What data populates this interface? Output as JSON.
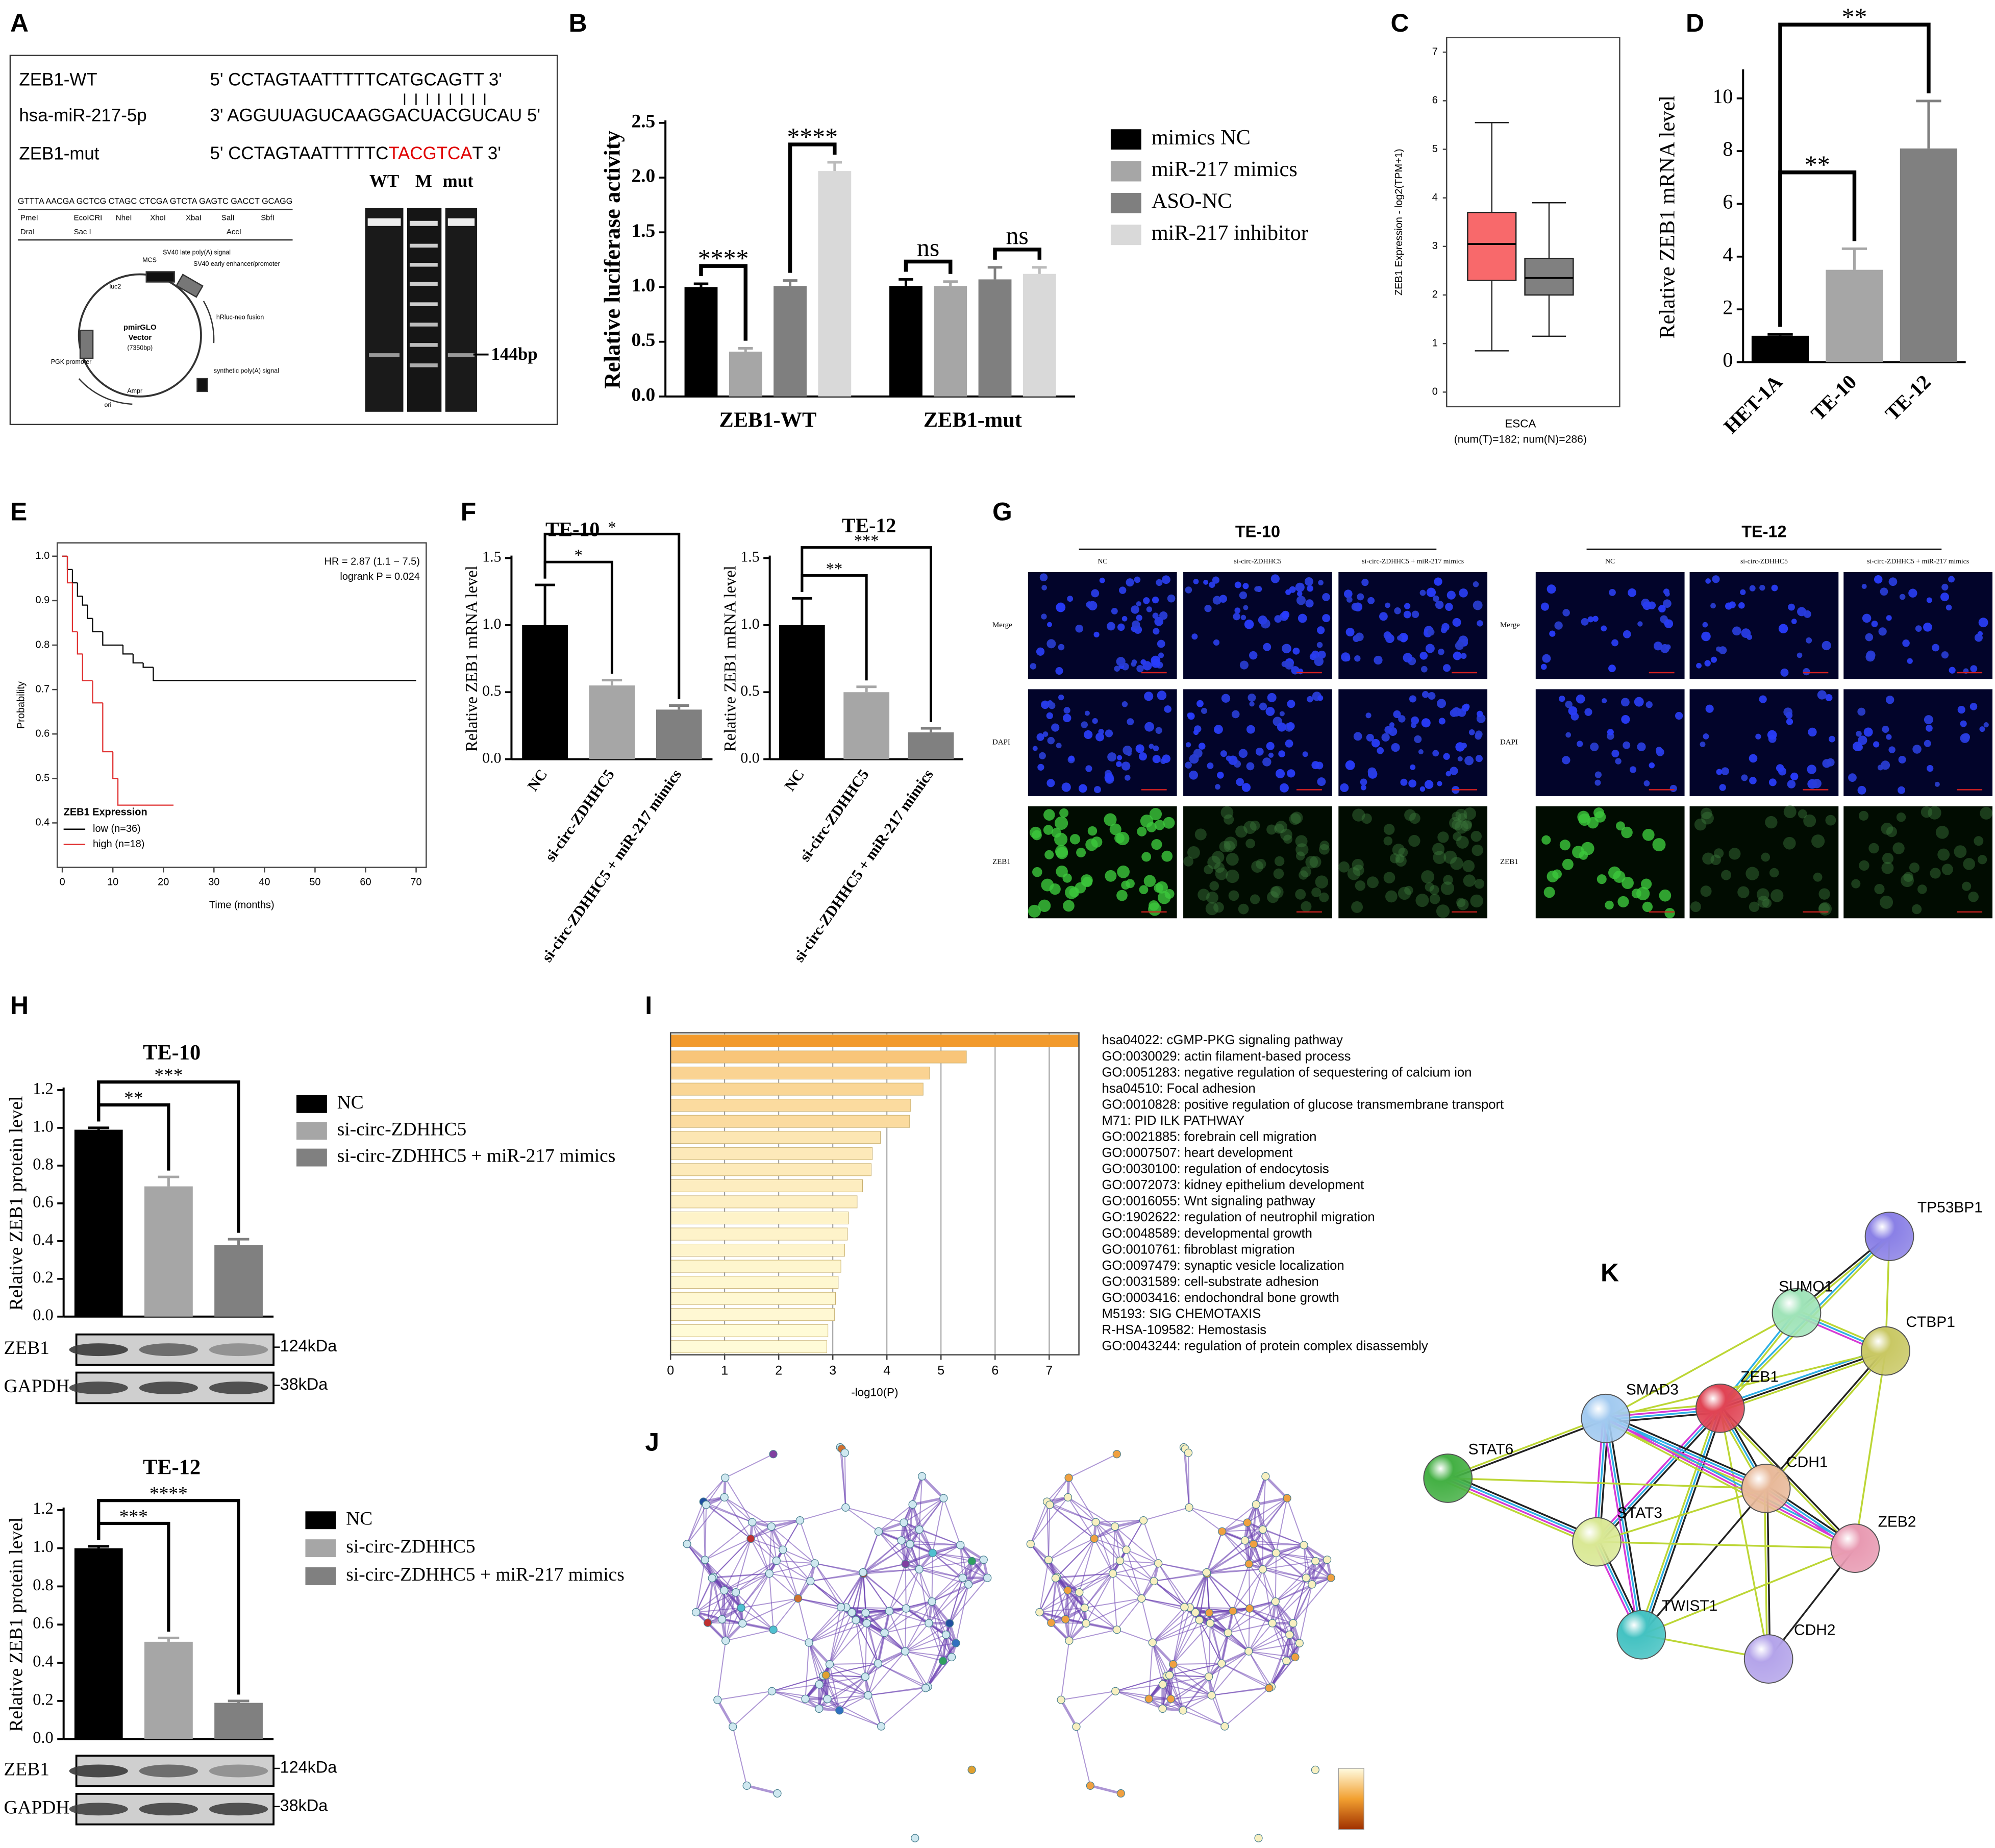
{
  "panel_labels": [
    "A",
    "B",
    "C",
    "D",
    "E",
    "F",
    "G",
    "H",
    "I",
    "J",
    "K"
  ],
  "chart_data": [
    {
      "type": "bar",
      "categories": [
        "ZEB1-WT",
        "ZEB1-mut"
      ],
      "series": [
        {
          "name": "mimics NC",
          "color": "#000000",
          "values": [
            1.0,
            1.01
          ],
          "errors": [
            0.03,
            0.06
          ]
        },
        {
          "name": "miR-217 mimics",
          "color": "#a6a6a6",
          "values": [
            0.41,
            1.01
          ],
          "errors": [
            0.03,
            0.04
          ]
        },
        {
          "name": "ASO-NC",
          "color": "#7f7f7f",
          "values": [
            1.01,
            1.07
          ],
          "errors": [
            0.05,
            0.11
          ]
        },
        {
          "name": "miR-217 inhibitor",
          "color": "#d9d9d9",
          "values": [
            2.06,
            1.12
          ],
          "errors": [
            0.08,
            0.06
          ]
        }
      ],
      "y_label": "Relative luciferase activity",
      "ylim": [
        0,
        2.5
      ],
      "yticks": [
        {
          "value": 0,
          "label": "0.0"
        },
        0.5,
        {
          "value": 1,
          "label": "1.0"
        },
        1.5,
        {
          "value": 2,
          "label": "2.0"
        },
        2.5
      ],
      "annotations": [
        {
          "label": "****",
          "category": 0,
          "from": 0,
          "to": 1
        },
        {
          "label": "****",
          "category": 0,
          "from": 2,
          "to": 3
        },
        {
          "label": "ns",
          "category": 1,
          "from": 0,
          "to": 1
        },
        {
          "label": "ns",
          "category": 1,
          "from": 2,
          "to": 3
        }
      ],
      "legend": true
    },
    {
      "type": "box",
      "y_label": "ZEB1 Expression - log2(TPM+1)",
      "x_label": "ESCA",
      "x_sublabel": "(num(T)=182; num(N)=286)",
      "ylim": [
        -0.3,
        7.3
      ],
      "yticks": [
        0,
        1,
        2,
        3,
        4,
        5,
        6,
        7
      ],
      "boxes": [
        {
          "color": "#f8696b",
          "whisker_low": 0.85,
          "q1": 2.3,
          "median": 3.05,
          "q3": 3.7,
          "whisker_high": 5.55
        },
        {
          "color": "#808080",
          "whisker_low": 1.15,
          "q1": 2.0,
          "median": 2.35,
          "q3": 2.75,
          "whisker_high": 3.9
        }
      ]
    },
    {
      "type": "bar",
      "categories": [
        "HET-1A",
        "TE-10",
        "TE-12"
      ],
      "values": [
        1.0,
        3.5,
        8.1
      ],
      "errors": [
        0.05,
        0.8,
        1.8
      ],
      "colors": [
        "#000000",
        "#a6a6a6",
        "#808080"
      ],
      "y_label": "Relative ZEB1 mRNA level",
      "ylim": [
        0,
        11
      ],
      "yticks": [
        0,
        2,
        4,
        6,
        8,
        10
      ],
      "annotations": [
        {
          "label": "**",
          "from": 0,
          "to": 1
        },
        {
          "label": "**",
          "from": 0,
          "to": 2
        }
      ]
    },
    {
      "type": "line",
      "step": true,
      "x_label": "Time (months)",
      "y_label": "Probability",
      "xlim": [
        -1,
        72
      ],
      "xticks": [
        0,
        10,
        20,
        30,
        40,
        50,
        60,
        70
      ],
      "ylim": [
        0.3,
        1.03
      ],
      "yticks": [
        0.4,
        0.5,
        0.6,
        0.7,
        0.8,
        0.9,
        {
          "value": 1,
          "label": "1.0"
        }
      ],
      "annotations": [
        "HR = 2.87 (1.1 − 7.5)",
        "logrank P = 0.024"
      ],
      "legend_title": "ZEB1 Expression",
      "series": [
        {
          "name": "low  (n=36)",
          "color": "#000000",
          "x": [
            0,
            1,
            2,
            3,
            4,
            5,
            6,
            8,
            10,
            12,
            14,
            16,
            18,
            70
          ],
          "values": [
            1,
            0.97,
            0.94,
            0.91,
            0.89,
            0.86,
            0.83,
            0.8,
            0.8,
            0.78,
            0.76,
            0.75,
            0.72,
            0.72
          ]
        },
        {
          "name": "high (n=18)",
          "color": "#e03030",
          "x": [
            0,
            1,
            2,
            3,
            4,
            6,
            8,
            10,
            11,
            22
          ],
          "values": [
            1,
            0.94,
            0.83,
            0.78,
            0.72,
            0.67,
            0.56,
            0.5,
            0.44,
            0.44
          ]
        }
      ]
    },
    {
      "type": "bar",
      "title": "TE-10",
      "categories": [
        "NC",
        "si-circ-ZDHHC5",
        "si-circ-ZDHHC5 + miR-217 mimics"
      ],
      "values": [
        1.0,
        0.55,
        0.37
      ],
      "errors": [
        0.3,
        0.04,
        0.03
      ],
      "colors": [
        "#000000",
        "#a6a6a6",
        "#808080"
      ],
      "y_label": "Relative ZEB1 mRNA level",
      "ylim": [
        0,
        1.5
      ],
      "yticks": [
        {
          "value": 0,
          "label": "0.0"
        },
        0.5,
        {
          "value": 1,
          "label": "1.0"
        },
        1.5
      ],
      "annotations": [
        {
          "label": "*",
          "from": 0,
          "to": 1
        },
        {
          "label": "*",
          "from": 0,
          "to": 2
        }
      ]
    },
    {
      "type": "bar",
      "title": "TE-12",
      "categories": [
        "NC",
        "si-circ-ZDHHC5",
        "si-circ-ZDHHC5 + miR-217 mimics"
      ],
      "values": [
        1.0,
        0.5,
        0.2
      ],
      "errors": [
        0.2,
        0.04,
        0.03
      ],
      "colors": [
        "#000000",
        "#a6a6a6",
        "#808080"
      ],
      "y_label": "Relative ZEB1 mRNA level",
      "ylim": [
        0,
        1.5
      ],
      "yticks": [
        {
          "value": 0,
          "label": "0.0"
        },
        0.5,
        {
          "value": 1,
          "label": "1.0"
        },
        1.5
      ],
      "annotations": [
        {
          "label": "**",
          "from": 0,
          "to": 1
        },
        {
          "label": "***",
          "from": 0,
          "to": 2
        }
      ]
    },
    {
      "type": "bar",
      "title": "TE-10",
      "categories": [
        "NC",
        "si-circ-ZDHHC5",
        "si-circ-ZDHHC5 + miR-217 mimics"
      ],
      "values": [
        0.99,
        0.69,
        0.38
      ],
      "errors": [
        0.01,
        0.05,
        0.03
      ],
      "colors": [
        "#000000",
        "#a6a6a6",
        "#808080"
      ],
      "y_label": "Relative ZEB1 protein level",
      "ylim": [
        0,
        1.2
      ],
      "yticks": [
        {
          "value": 0,
          "label": "0.0"
        },
        0.2,
        0.4,
        0.6,
        0.8,
        {
          "value": 1,
          "label": "1.0"
        },
        1.2
      ],
      "annotations": [
        {
          "label": "**",
          "from": 0,
          "to": 1
        },
        {
          "label": "***",
          "from": 0,
          "to": 2
        }
      ],
      "legend": true,
      "xtick_labels": false,
      "blots": [
        {
          "label": "ZEB1",
          "size": "124kDa"
        },
        {
          "label": "GAPDH",
          "size": "38kDa"
        }
      ]
    },
    {
      "type": "bar",
      "title": "TE-12",
      "categories": [
        "NC",
        "si-circ-ZDHHC5",
        "si-circ-ZDHHC5 + miR-217 mimics"
      ],
      "values": [
        1.0,
        0.51,
        0.19
      ],
      "errors": [
        0.01,
        0.02,
        0.01
      ],
      "colors": [
        "#000000",
        "#a6a6a6",
        "#808080"
      ],
      "y_label": "Relative ZEB1 protein level",
      "ylim": [
        0,
        1.2
      ],
      "yticks": [
        {
          "value": 0,
          "label": "0.0"
        },
        0.2,
        0.4,
        0.6,
        0.8,
        {
          "value": 1,
          "label": "1.0"
        },
        1.2
      ],
      "annotations": [
        {
          "label": "***",
          "from": 0,
          "to": 1
        },
        {
          "label": "****",
          "from": 0,
          "to": 2
        }
      ],
      "legend": true,
      "xtick_labels": false,
      "blots": [
        {
          "label": "ZEB1",
          "size": "124kDa"
        },
        {
          "label": "GAPDH",
          "size": "38kDa"
        }
      ]
    },
    {
      "type": "hbar",
      "x_label": "-log10(P)",
      "xlim": [
        0,
        7.55
      ],
      "xticks": [
        0,
        1,
        2,
        3,
        4,
        5,
        6,
        7
      ],
      "grid": true,
      "color_scale": [
        "#fffbd8",
        "#f29a2c"
      ],
      "categories": [
        "hsa04022: cGMP-PKG signaling pathway",
        "GO:0030029: actin filament-based process",
        "GO:0051283: negative regulation of sequestering of calcium ion",
        "hsa04510: Focal adhesion",
        "GO:0010828: positive regulation of glucose transmembrane transport",
        "M71: PID ILK PATHWAY",
        "GO:0021885: forebrain cell migration",
        "GO:0007507: heart development",
        "GO:0030100: regulation of endocytosis",
        "GO:0072073: kidney epithelium development",
        "GO:0016055: Wnt signaling pathway",
        "GO:1902622: regulation of neutrophil migration",
        "GO:0048589: developmental growth",
        "GO:0010761: fibroblast migration",
        "GO:0097479: synaptic vesicle localization",
        "GO:0031589: cell-substrate adhesion",
        "GO:0003416: endochondral bone growth",
        "M5193: SIG CHEMOTAXIS",
        "R-HSA-109582: Hemostasis",
        "GO:0043244: regulation of protein complex disassembly"
      ],
      "values": [
        7.54,
        5.47,
        4.79,
        4.67,
        4.44,
        4.42,
        3.88,
        3.73,
        3.71,
        3.55,
        3.45,
        3.29,
        3.27,
        3.22,
        3.15,
        3.1,
        3.05,
        3.03,
        2.91,
        2.89
      ]
    }
  ],
  "panels": {
    "A": {
      "rows": [
        {
          "label": "ZEB1-WT",
          "sequence": "5' CCTAGTAATTTTTCATGCAGTT 3'"
        },
        {
          "label": "hsa-miR-217-5p",
          "sequence": "3' AGGUUAGUCAAGGACUACGUCAU 5'"
        },
        {
          "label": "ZEB1-mut",
          "sequence": [
            "5' CCTAGTAATTTTTC",
            "TACGTCA",
            "T 3'"
          ]
        }
      ],
      "mcs": "GTTTA AACGA GCTCG CTAGC CTCGA GTCTA GAGTC GACCT GCAGG",
      "sites": [
        "PmeI",
        "DraI",
        "EcoICRI",
        "Sac I",
        "NheI",
        "XhoI",
        "XbaI",
        "SalI",
        "AccI",
        "SbfI"
      ],
      "vector": [
        "pmirGLO",
        "Vector",
        "(7350bp)"
      ],
      "features": [
        "MCS",
        "SV40 late poly(A) signal",
        "SV40 early enhancer/promoter",
        "hRluc-neo fusion",
        "synthetic poly(A) signal",
        "Ampr",
        "ori",
        "PGK promoter",
        "luc2"
      ],
      "gel": {
        "lanes": [
          "WT",
          "M",
          "mut"
        ],
        "marker": "144bp"
      }
    },
    "G": {
      "groups": [
        {
          "title": "TE-10",
          "columns": [
            "NC",
            "si-circ-ZDHHC5",
            "si-circ-ZDHHC5 + miR-217 mimics"
          ],
          "rows": [
            "Merge",
            "DAPI",
            "ZEB1"
          ]
        },
        {
          "title": "TE-12",
          "columns": [
            "NC",
            "si-circ-ZDHHC5",
            "si-circ-ZDHHC5 + miR-217 mimics"
          ],
          "rows": [
            "Merge",
            "DAPI",
            "ZEB1"
          ]
        }
      ]
    },
    "K": {
      "nodes": [
        {
          "name": "TP53BP1",
          "color": "#8a80e6"
        },
        {
          "name": "SUMO1",
          "color": "#9fe3b8"
        },
        {
          "name": "CTBP1",
          "color": "#c9c864"
        },
        {
          "name": "ZEB1",
          "color": "#e04454"
        },
        {
          "name": "SMAD3",
          "color": "#a2caf0"
        },
        {
          "name": "STAT6",
          "color": "#44b044"
        },
        {
          "name": "CDH1",
          "color": "#e8b99a"
        },
        {
          "name": "STAT3",
          "color": "#d9e894"
        },
        {
          "name": "ZEB2",
          "color": "#e89ab2"
        },
        {
          "name": "TWIST1",
          "color": "#44c2c2"
        },
        {
          "name": "CDH2",
          "color": "#b4a4ea"
        }
      ]
    }
  }
}
